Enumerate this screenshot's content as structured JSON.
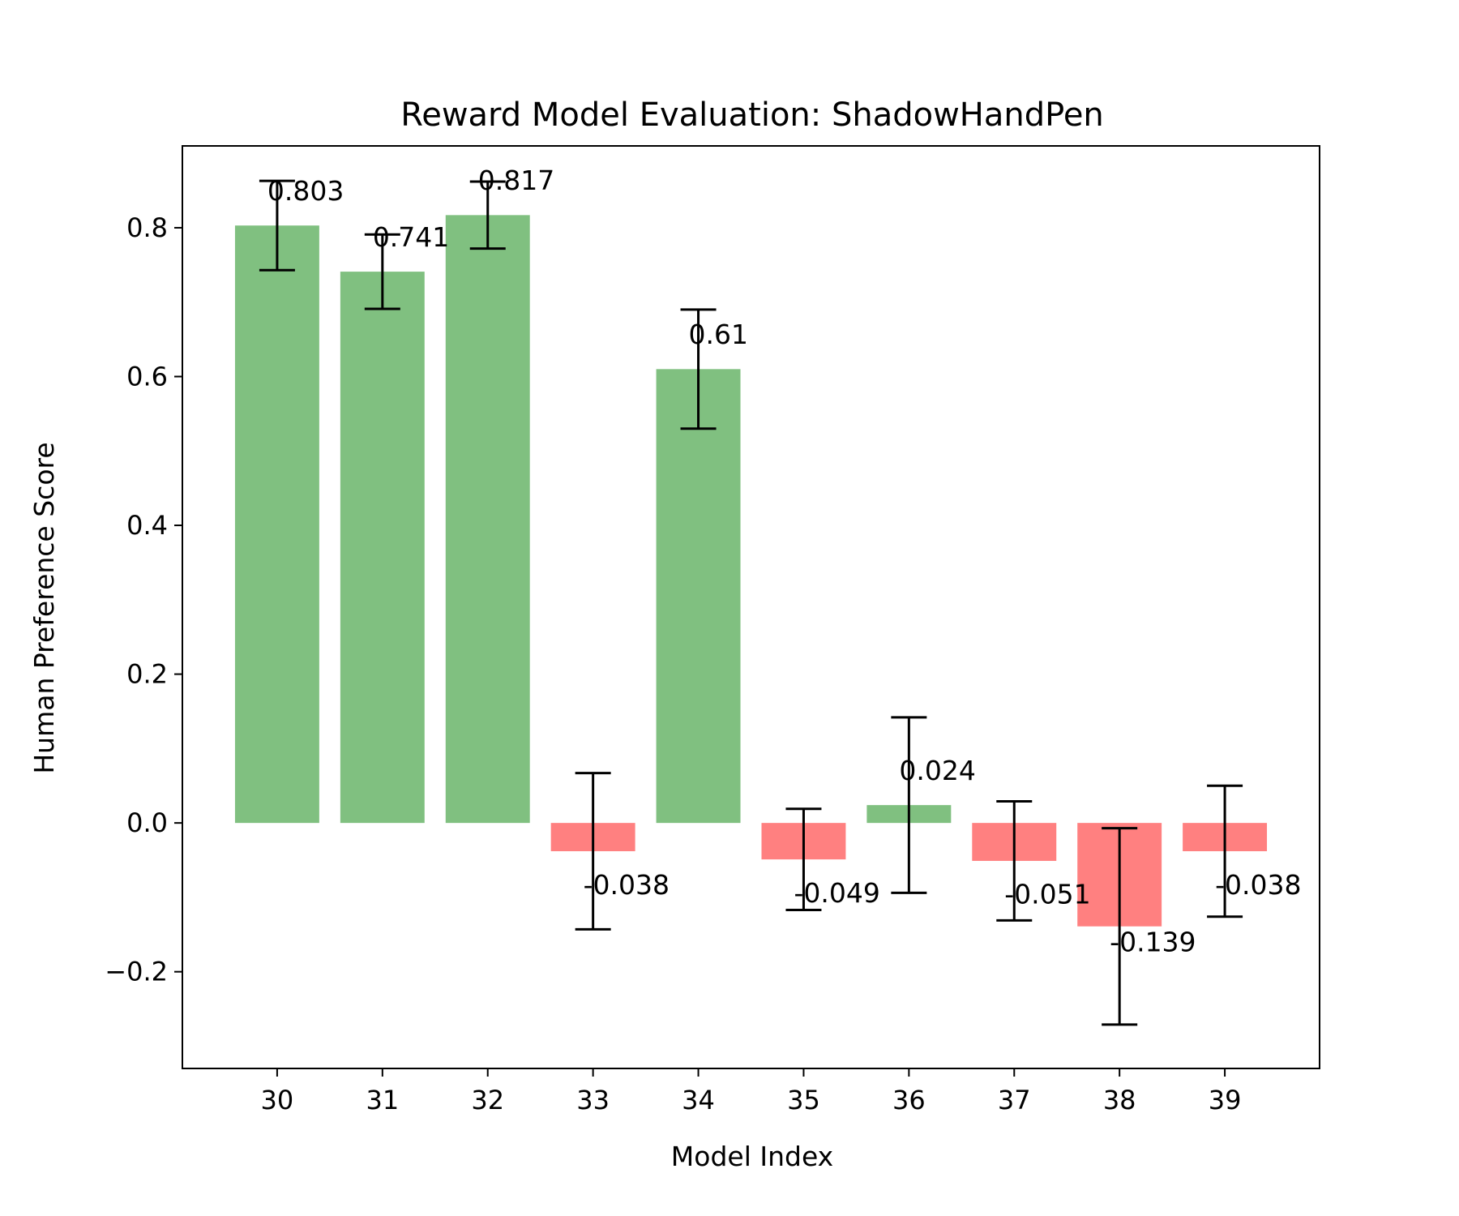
{
  "chart_data": {
    "type": "bar",
    "title": "Reward Model Evaluation: ShadowHandPen",
    "xlabel": "Model Index",
    "ylabel": "Human Preference Score",
    "categories": [
      "30",
      "31",
      "32",
      "33",
      "34",
      "35",
      "36",
      "37",
      "38",
      "39"
    ],
    "values": [
      0.803,
      0.741,
      0.817,
      -0.038,
      0.61,
      -0.049,
      0.024,
      -0.051,
      -0.139,
      -0.038
    ],
    "value_labels": [
      "0.803",
      "0.741",
      "0.817",
      "-0.038",
      "0.61",
      "-0.049",
      "0.024",
      "-0.051",
      "-0.139",
      "-0.038"
    ],
    "errors": [
      0.06,
      0.05,
      0.045,
      0.105,
      0.08,
      0.068,
      0.118,
      0.08,
      0.132,
      0.088
    ],
    "ylim": [
      -0.33,
      0.91
    ],
    "yticks": [
      -0.2,
      0.0,
      0.2,
      0.4,
      0.6,
      0.8
    ],
    "ytick_labels": [
      "−0.2",
      "0.0",
      "0.2",
      "0.4",
      "0.6",
      "0.8"
    ],
    "grid": false,
    "colors": {
      "positive": "#80c080",
      "negative": "#ff8080",
      "error_bar": "#000000"
    }
  }
}
